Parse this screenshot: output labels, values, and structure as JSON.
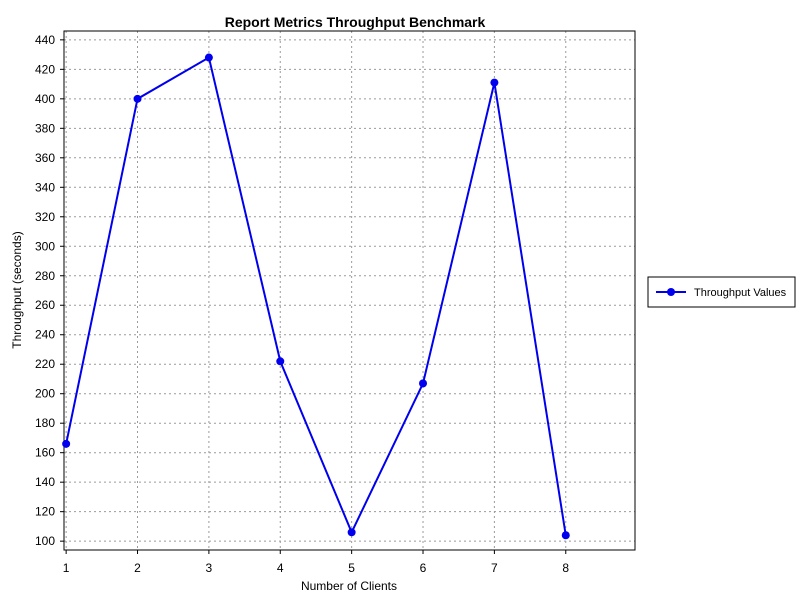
{
  "chart_data": {
    "type": "line",
    "title": "Report Metrics Throughput Benchmark",
    "xlabel": "Number of Clients",
    "ylabel": "Throughput (seconds)",
    "x": [
      1,
      2,
      3,
      4,
      5,
      6,
      7,
      8
    ],
    "x_ticks": [
      "1",
      "2",
      "3",
      "4",
      "5",
      "6",
      "7",
      "8"
    ],
    "y_ticks": [
      "100",
      "120",
      "140",
      "160",
      "180",
      "200",
      "220",
      "240",
      "260",
      "280",
      "300",
      "320",
      "340",
      "360",
      "380",
      "400",
      "420",
      "440"
    ],
    "xlim": [
      0.97,
      8.97
    ],
    "ylim": [
      94,
      446
    ],
    "grid": true,
    "legend_position": "right",
    "series": [
      {
        "name": "Throughput Values",
        "color": "#0000ee",
        "marker": "circle",
        "values": [
          166,
          400,
          428,
          222,
          106,
          207,
          411,
          104
        ]
      }
    ]
  }
}
